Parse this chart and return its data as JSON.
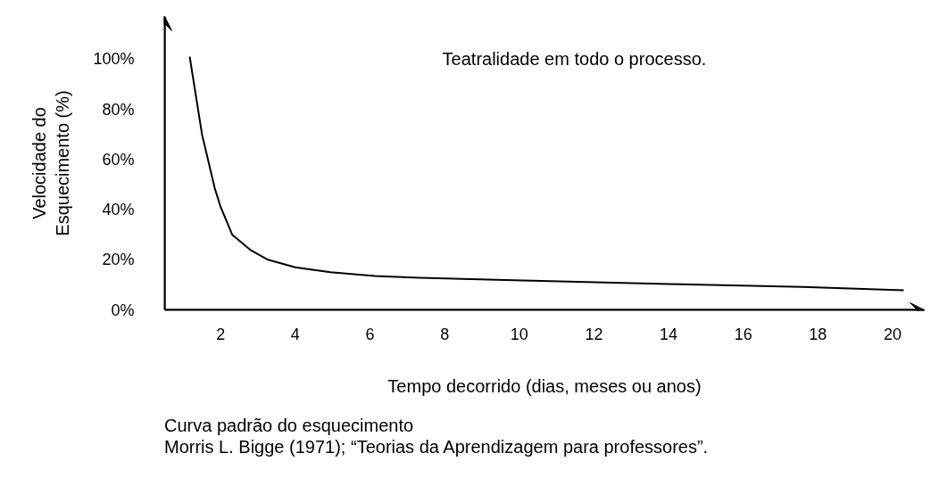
{
  "chart_data": {
    "type": "line",
    "title": "Teatralidade em todo o processo.",
    "xlabel": "Tempo decorrido (dias, meses ou anos)",
    "ylabel": "Velocidade do Esquecimento (%)",
    "annotations": [
      "Curva padrão do esquecimento",
      "Morris L. Bigge (1971); “Teorias da Aprendizagem para professores”."
    ],
    "x": [
      1.17,
      1.5,
      1.84,
      2,
      2.31,
      2.79,
      3.27,
      4,
      4.94,
      6.14,
      7.34,
      10.1,
      14,
      17.6,
      20.3
    ],
    "series": [
      {
        "color": "#000000",
        "values": [
          101,
          70,
          48.6,
          41,
          30,
          24,
          20,
          17,
          15,
          13.5,
          12.8,
          11.7,
          10.3,
          9.2,
          7.8
        ]
      }
    ],
    "xlim": [
      0.5,
      20.85
    ],
    "ylim": [
      0,
      117
    ],
    "xticks": [
      2,
      4,
      6,
      8,
      10,
      12,
      14,
      16,
      18,
      20
    ],
    "yticks": [
      {
        "value": 0,
        "label": "0%"
      },
      {
        "value": 20,
        "label": "20%"
      },
      {
        "value": 40,
        "label": "40%"
      },
      {
        "value": 60,
        "label": "60%"
      },
      {
        "value": 80,
        "label": "80%"
      },
      {
        "value": 100,
        "label": "100%"
      }
    ],
    "grid": false,
    "marker": "none",
    "line_style": "solid"
  }
}
